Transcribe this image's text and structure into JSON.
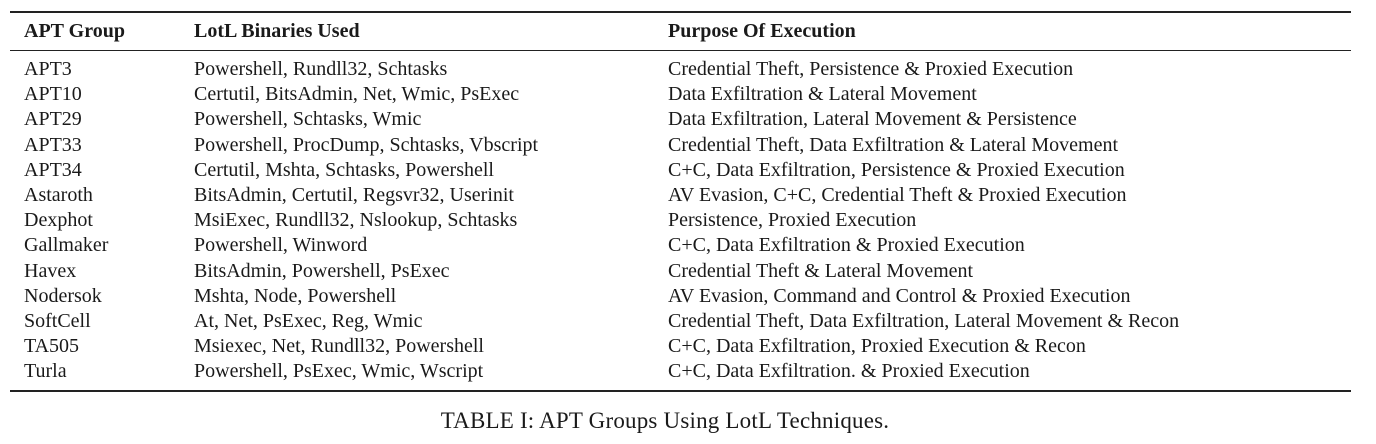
{
  "table": {
    "headers": [
      "APT Group",
      "LotL Binaries Used",
      "Purpose Of Execution"
    ],
    "rows": [
      [
        "APT3",
        "Powershell, Rundll32, Schtasks",
        "Credential Theft, Persistence & Proxied Execution"
      ],
      [
        "APT10",
        "Certutil, BitsAdmin, Net, Wmic, PsExec",
        "Data Exfiltration & Lateral Movement"
      ],
      [
        "APT29",
        "Powershell, Schtasks, Wmic",
        "Data Exfiltration, Lateral Movement & Persistence"
      ],
      [
        "APT33",
        "Powershell, ProcDump, Schtasks, Vbscript",
        "Credential Theft, Data Exfiltration & Lateral Movement"
      ],
      [
        "APT34",
        "Certutil, Mshta, Schtasks, Powershell",
        "C+C, Data Exfiltration, Persistence & Proxied Execution"
      ],
      [
        "Astaroth",
        "BitsAdmin, Certutil, Regsvr32, Userinit",
        "AV Evasion, C+C, Credential Theft & Proxied Execution"
      ],
      [
        "Dexphot",
        "MsiExec, Rundll32, Nslookup, Schtasks",
        "Persistence, Proxied Execution"
      ],
      [
        "Gallmaker",
        "Powershell, Winword",
        "C+C, Data Exfiltration & Proxied Execution"
      ],
      [
        "Havex",
        "BitsAdmin, Powershell, PsExec",
        "Credential Theft & Lateral Movement"
      ],
      [
        "Nodersok",
        "Mshta, Node, Powershell",
        "AV Evasion, Command and Control & Proxied Execution"
      ],
      [
        "SoftCell",
        "At, Net, PsExec, Reg, Wmic",
        "Credential Theft, Data Exfiltration, Lateral Movement & Recon"
      ],
      [
        "TA505",
        "Msiexec, Net, Rundll32, Powershell",
        "C+C, Data Exfiltration, Proxied Execution & Recon"
      ],
      [
        "Turla",
        "Powershell, PsExec, Wmic, Wscript",
        "C+C, Data Exfiltration. & Proxied Execution"
      ]
    ]
  },
  "caption": "TABLE I: APT Groups Using LotL Techniques."
}
